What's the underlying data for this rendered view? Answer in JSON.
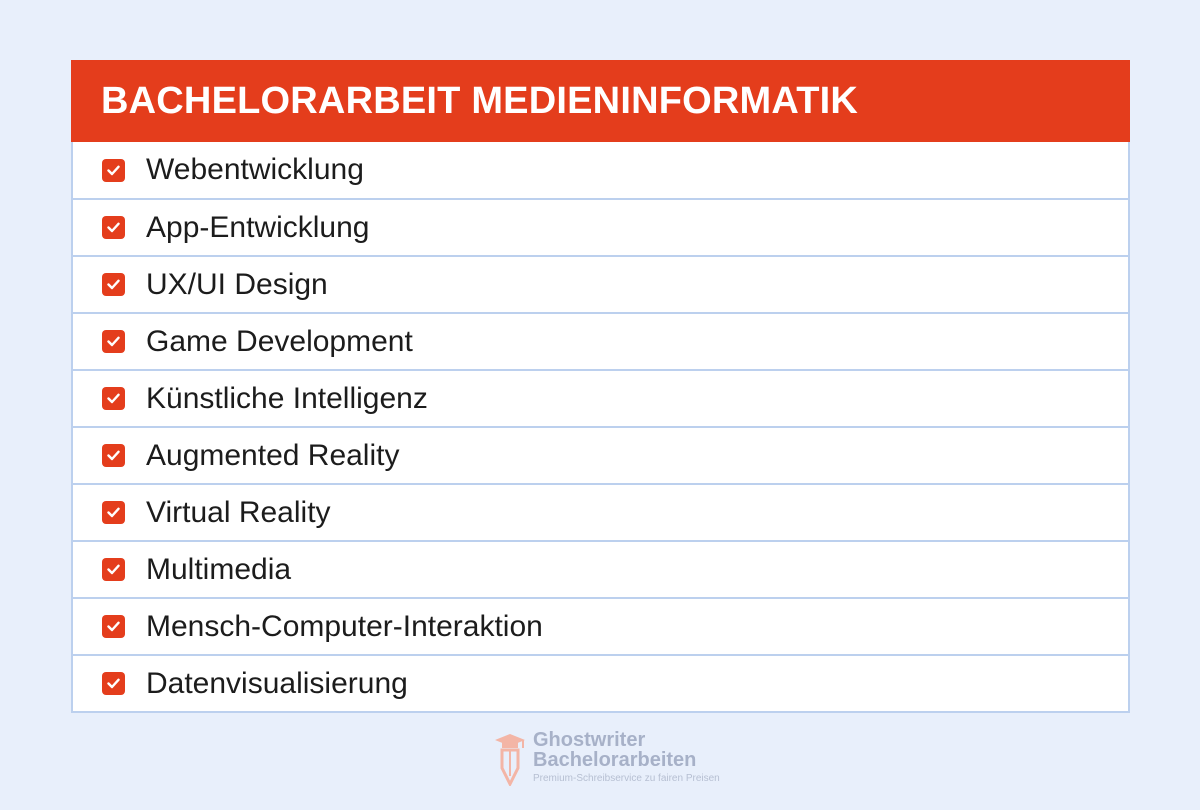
{
  "card": {
    "title": "BACHELORARBEIT MEDIENINFORMATIK",
    "accent_color": "#e43d1c",
    "items": [
      {
        "label": "Webentwicklung",
        "icon": "checkbox-checked-icon",
        "checked": true
      },
      {
        "label": "App-Entwicklung",
        "icon": "checkbox-checked-icon",
        "checked": true
      },
      {
        "label": "UX/UI Design",
        "icon": "checkbox-checked-icon",
        "checked": true
      },
      {
        "label": "Game Development",
        "icon": "checkbox-checked-icon",
        "checked": true
      },
      {
        "label": "Künstliche Intelligenz",
        "icon": "checkbox-checked-icon",
        "checked": true
      },
      {
        "label": "Augmented Reality",
        "icon": "checkbox-checked-icon",
        "checked": true
      },
      {
        "label": "Virtual Reality",
        "icon": "checkbox-checked-icon",
        "checked": true
      },
      {
        "label": "Multimedia",
        "icon": "checkbox-checked-icon",
        "checked": true
      },
      {
        "label": "Mensch-Computer-Interaktion",
        "icon": "checkbox-checked-icon",
        "checked": true
      },
      {
        "label": "Datenvisualisierung",
        "icon": "checkbox-checked-icon",
        "checked": true
      }
    ]
  },
  "logo": {
    "line1": "Ghostwriter",
    "line2": "Bachelorarbeiten",
    "tagline": "Premium-Schreibservice zu fairen Preisen",
    "icon": "pen-graduate-icon"
  }
}
